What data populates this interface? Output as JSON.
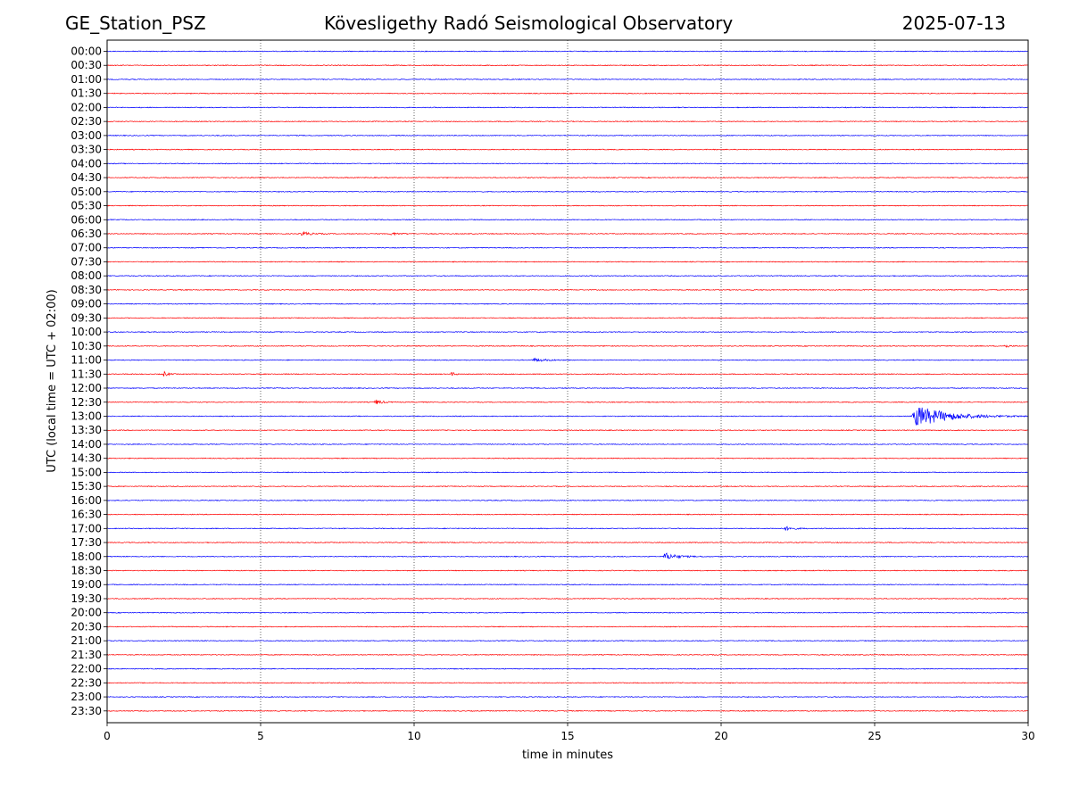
{
  "header": {
    "station": "GE_Station_PSZ",
    "observatory": "Kövesligethy Radó Seismological Observatory",
    "date": "2025-07-13"
  },
  "chart_data": {
    "type": "line",
    "title": "Kövesligethy Radó Seismological Observatory",
    "xlabel": "time in minutes",
    "ylabel": "UTC (local time = UTC + 02:00)",
    "xlim": [
      0,
      30
    ],
    "x_ticks": [
      0,
      5,
      10,
      15,
      20,
      25,
      30
    ],
    "grid": "dotted vertical lines at every 5 minutes",
    "row_labels": [
      "00:00",
      "00:30",
      "01:00",
      "01:30",
      "02:00",
      "02:30",
      "03:00",
      "03:30",
      "04:00",
      "04:30",
      "05:00",
      "05:30",
      "06:00",
      "06:30",
      "07:00",
      "07:30",
      "08:00",
      "08:30",
      "09:00",
      "09:30",
      "10:00",
      "10:30",
      "11:00",
      "11:30",
      "12:00",
      "12:30",
      "13:00",
      "13:30",
      "14:00",
      "14:30",
      "15:00",
      "15:30",
      "16:00",
      "16:30",
      "17:00",
      "17:30",
      "18:00",
      "18:30",
      "19:00",
      "19:30",
      "20:00",
      "20:30",
      "21:00",
      "21:30",
      "22:00",
      "22:30",
      "23:00",
      "23:30"
    ],
    "row_colors": [
      "#0000ff",
      "#ff0000"
    ],
    "events": [
      {
        "row": "06:30",
        "start_min": 6.3,
        "duration_min": 1.0,
        "amplitude": 2.5
      },
      {
        "row": "06:30",
        "start_min": 9.2,
        "duration_min": 1.0,
        "amplitude": 1.5
      },
      {
        "row": "10:30",
        "start_min": 29.2,
        "duration_min": 0.5,
        "amplitude": 2.5
      },
      {
        "row": "11:00",
        "start_min": 13.8,
        "duration_min": 1.5,
        "amplitude": 2.0
      },
      {
        "row": "11:30",
        "start_min": 1.8,
        "duration_min": 0.5,
        "amplitude": 3.5
      },
      {
        "row": "11:30",
        "start_min": 11.2,
        "duration_min": 0.4,
        "amplitude": 2.5
      },
      {
        "row": "12:30",
        "start_min": 8.7,
        "duration_min": 0.8,
        "amplitude": 3.0
      },
      {
        "row": "13:00",
        "start_min": 26.2,
        "duration_min": 3.8,
        "amplitude": 12.0
      },
      {
        "row": "17:00",
        "start_min": 22.0,
        "duration_min": 1.0,
        "amplitude": 2.5
      },
      {
        "row": "18:00",
        "start_min": 18.1,
        "duration_min": 1.5,
        "amplitude": 4.0
      }
    ]
  }
}
